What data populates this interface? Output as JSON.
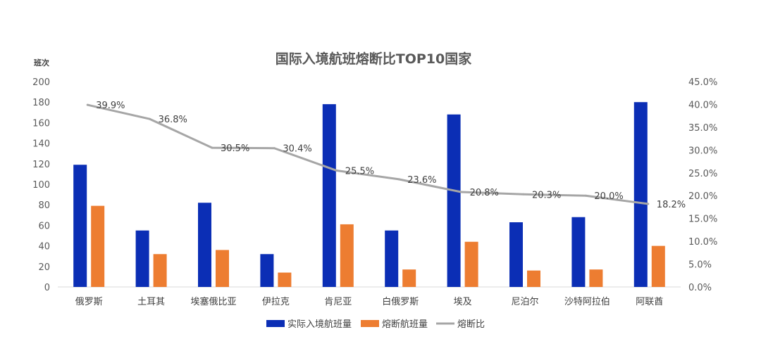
{
  "chart_data": {
    "type": "bar",
    "title": "国际入境航班熔断比TOP10国家",
    "y_unit_label": "班次",
    "categories": [
      "俄罗斯",
      "土耳其",
      "埃塞俄比亚",
      "伊拉克",
      "肯尼亚",
      "白俄罗斯",
      "埃及",
      "尼泊尔",
      "沙特阿拉伯",
      "阿联酋"
    ],
    "series": [
      {
        "name": "实际入境航班量",
        "type": "bar",
        "axis": "left",
        "color": "#0B2EB5",
        "values": [
          119,
          55,
          82,
          32,
          178,
          55,
          168,
          63,
          68,
          180
        ]
      },
      {
        "name": "熔断航班量",
        "type": "bar",
        "axis": "left",
        "color": "#ED7D31",
        "values": [
          79,
          32,
          36,
          14,
          61,
          17,
          44,
          16,
          17,
          40
        ]
      },
      {
        "name": "熔断比",
        "type": "line",
        "axis": "right",
        "color": "#A6A6A6",
        "values": [
          39.9,
          36.8,
          30.5,
          30.4,
          25.5,
          23.6,
          20.8,
          20.3,
          20.0,
          18.2
        ],
        "labels": [
          "39.9%",
          "36.8%",
          "30.5%",
          "30.4%",
          "25.5%",
          "23.6%",
          "20.8%",
          "20.3%",
          "20.0%",
          "18.2%"
        ]
      }
    ],
    "y_left": {
      "min": 0,
      "max": 200,
      "step": 20,
      "ticks": [
        "0",
        "20",
        "40",
        "60",
        "80",
        "100",
        "120",
        "140",
        "160",
        "180",
        "200"
      ]
    },
    "y_right": {
      "min": 0,
      "max": 45,
      "step": 5,
      "ticks": [
        "0.0%",
        "5.0%",
        "10.0%",
        "15.0%",
        "20.0%",
        "25.0%",
        "30.0%",
        "35.0%",
        "40.0%",
        "45.0%"
      ]
    },
    "grid": false,
    "legend_position": "bottom"
  }
}
